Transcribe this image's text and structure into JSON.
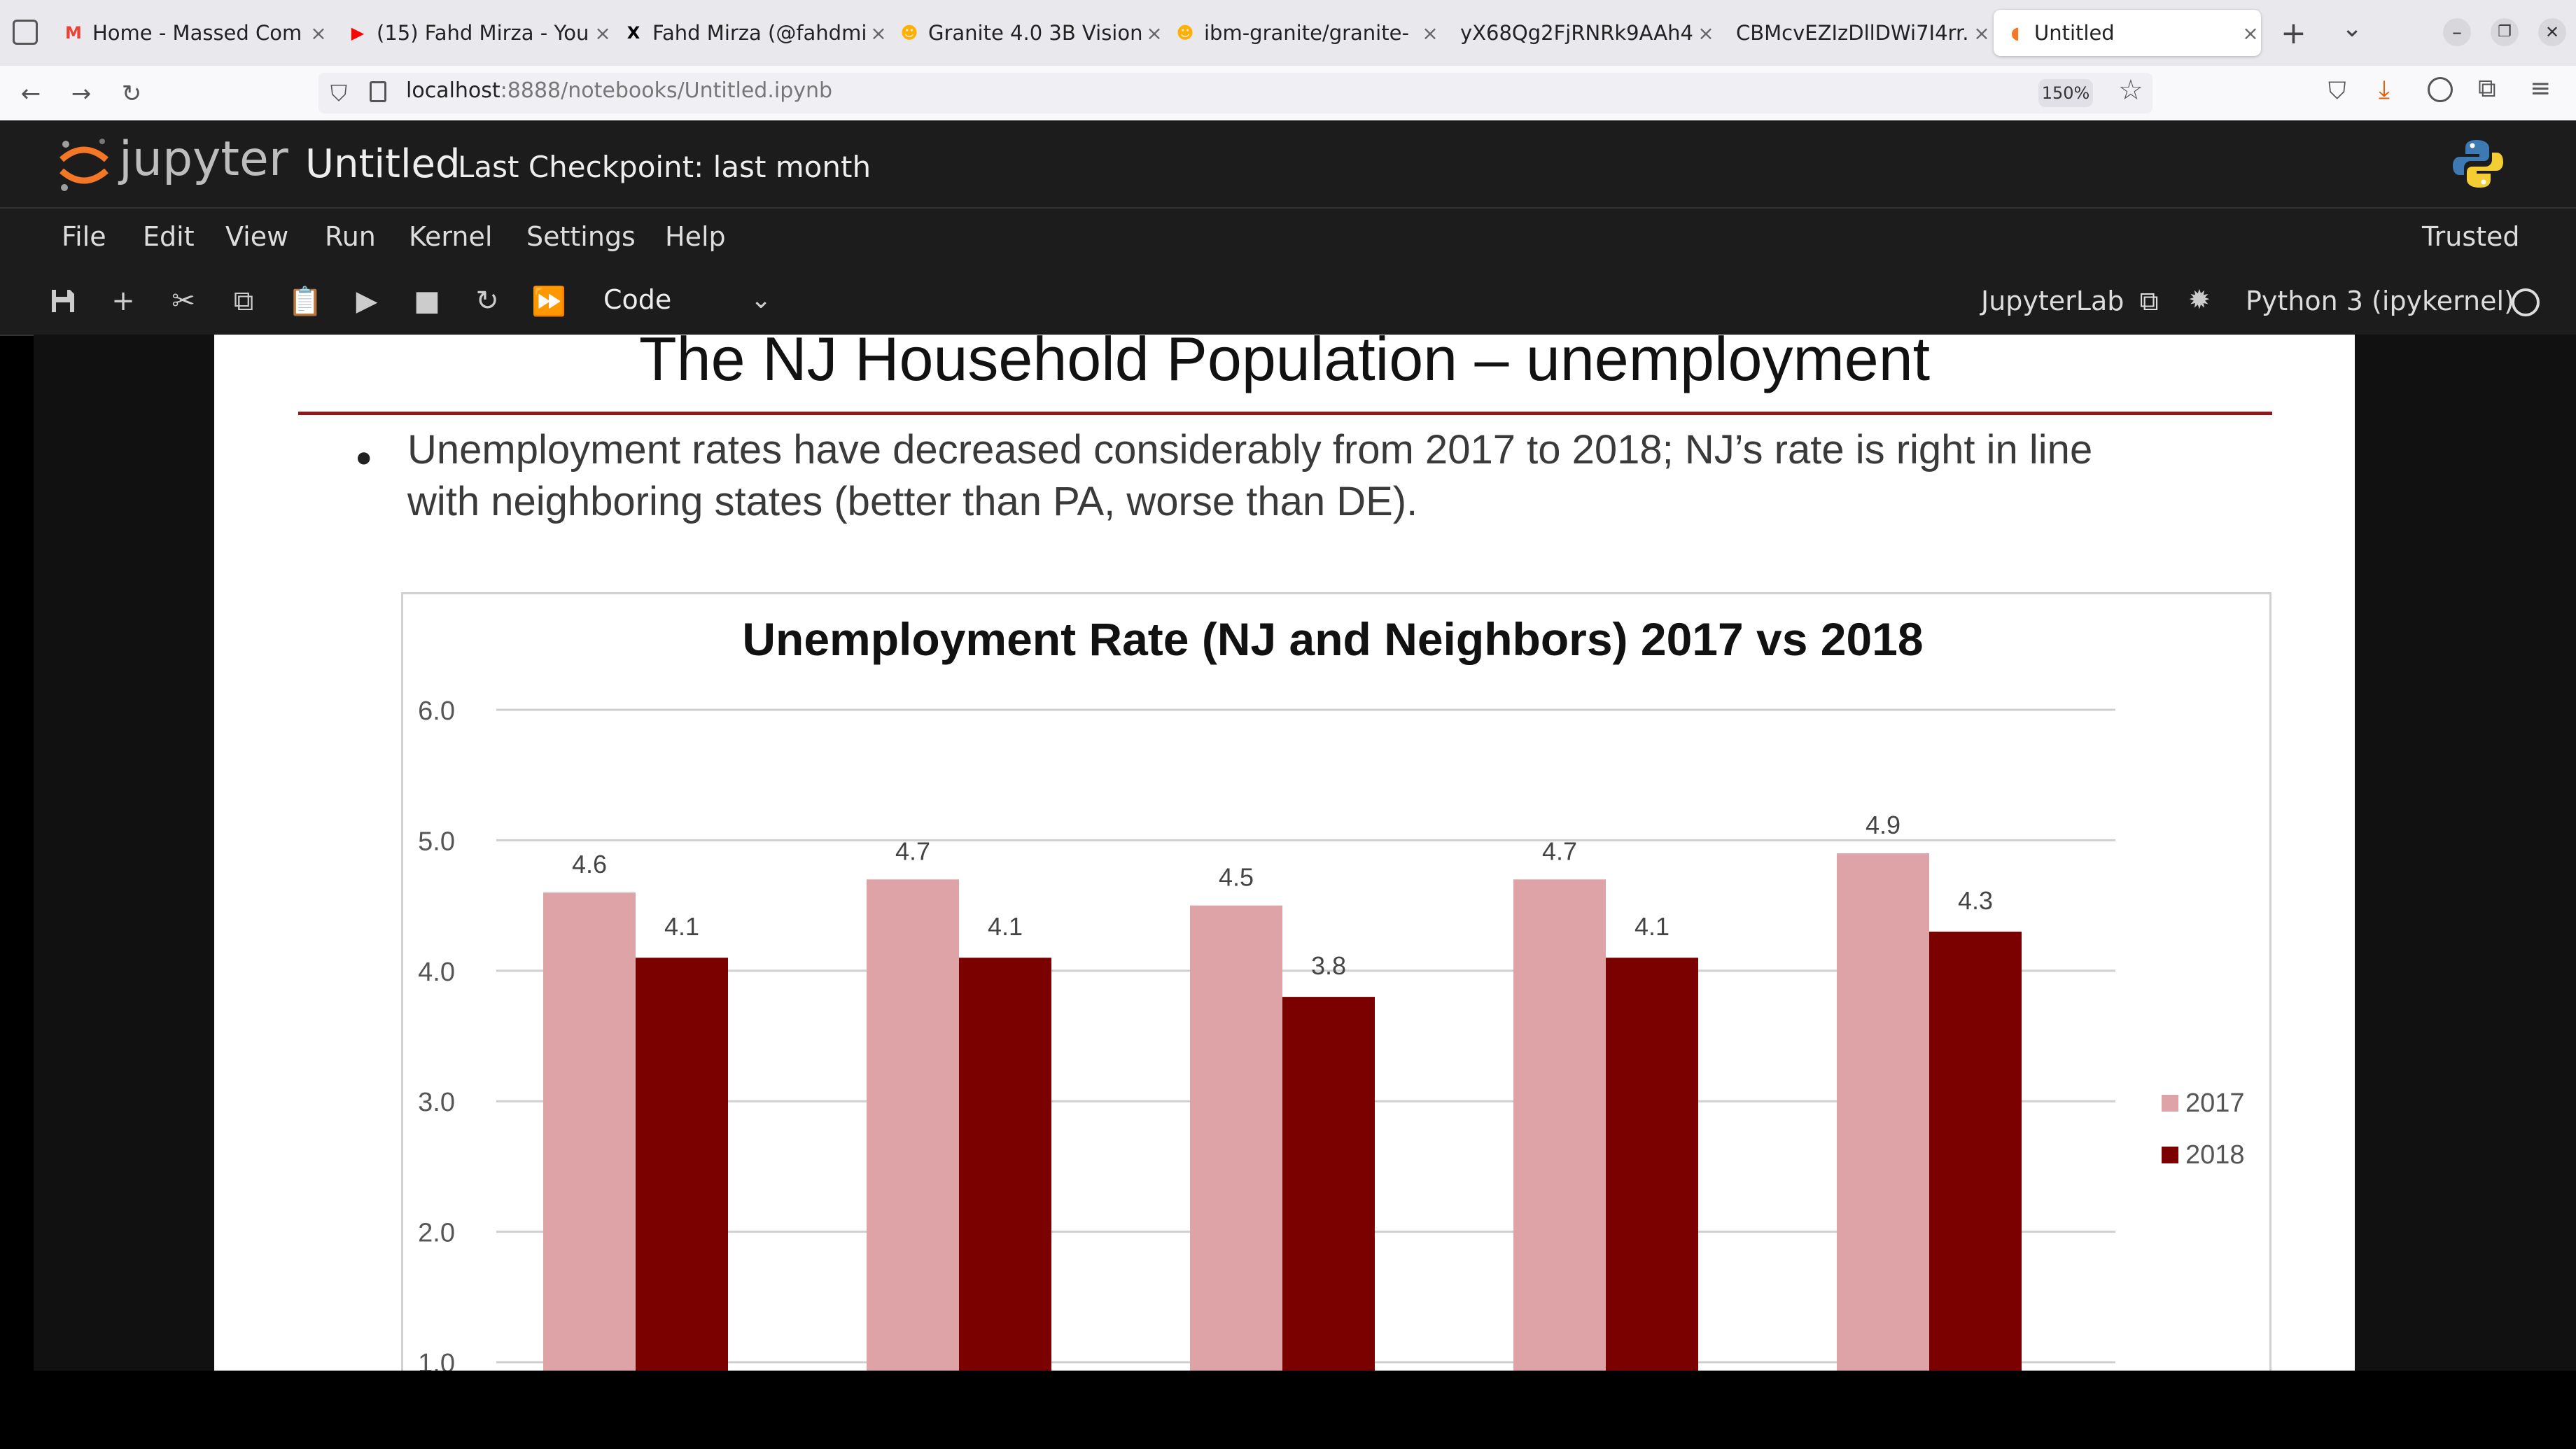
{
  "browser": {
    "tabs": [
      {
        "label": "Home - Massed Com",
        "icon": "gmail-icon",
        "color": "#ea4335",
        "glyph": "M"
      },
      {
        "label": "(15) Fahd Mirza - You",
        "icon": "youtube-icon",
        "color": "#ff0000",
        "glyph": "▶"
      },
      {
        "label": "Fahd Mirza (@fahdmi",
        "icon": "x-icon",
        "color": "#000000",
        "glyph": "X"
      },
      {
        "label": "Granite 4.0 3B Vision",
        "icon": "huggingface-icon",
        "color": "#ffb000",
        "glyph": "☻"
      },
      {
        "label": "ibm-granite/granite-",
        "icon": "huggingface-icon",
        "color": "#ffb000",
        "glyph": "☻"
      },
      {
        "label": "yX68Qg2FjRNRk9AAh4",
        "icon": "",
        "color": "",
        "glyph": ""
      },
      {
        "label": "CBMcvEZIzDllDWi7I4rr.",
        "icon": "",
        "color": "",
        "glyph": ""
      },
      {
        "label": "Untitled",
        "icon": "jupyter-icon",
        "color": "#f37726",
        "glyph": "◖"
      }
    ],
    "url_host": "localhost",
    "url_path": ":8888/notebooks/Untitled.ipynb",
    "zoom": "150%"
  },
  "jupyter": {
    "logo_text": "jupyter",
    "notebook_title": "Untitled",
    "checkpoint": "Last Checkpoint: last month",
    "menu": [
      "File",
      "Edit",
      "View",
      "Run",
      "Kernel",
      "Settings",
      "Help"
    ],
    "trusted": "Trusted",
    "cell_type": "Code",
    "jupyterlab_link": "JupyterLab",
    "kernel": "Python 3 (ipykernel)"
  },
  "slide": {
    "title": "The NJ Household Population – unemployment",
    "bullet": "Unemployment rates have decreased considerably from 2017 to 2018; NJ’s rate is right in line with neighboring states (better than PA, worse than DE).",
    "bullet_line1": "Unemployment rates have decreased considerably from 2017 to 2018; NJ’s rate is right in line",
    "bullet_line2": "with neighboring states (better than PA, worse than DE)."
  },
  "chart_data": {
    "type": "bar",
    "title": "Unemployment Rate (NJ and Neighbors) 2017 vs 2018",
    "ylim": [
      1.0,
      6.0
    ],
    "yticks": [
      "1.0",
      "2.0",
      "3.0",
      "4.0",
      "5.0",
      "6.0"
    ],
    "grid": true,
    "legend": "right",
    "series": [
      {
        "name": "2017",
        "color": "#dda3a6",
        "values": [
          4.6,
          4.7,
          4.5,
          4.7,
          4.9
        ]
      },
      {
        "name": "2018",
        "color": "#7b0000",
        "values": [
          4.1,
          4.1,
          3.8,
          4.1,
          4.3
        ]
      }
    ]
  }
}
